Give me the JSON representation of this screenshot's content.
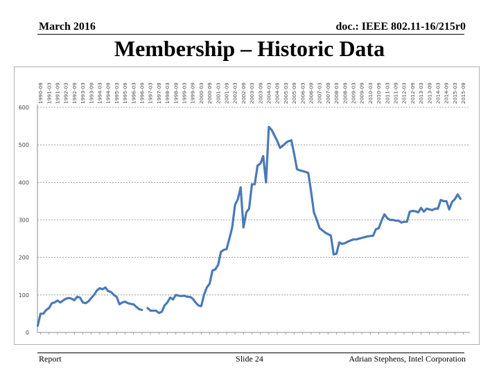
{
  "header": {
    "date": "March 2016",
    "doc_id": "doc.: IEEE 802.11-16/215r0"
  },
  "title": "Membership – Historic Data",
  "footer": {
    "left": "Report",
    "center": "Slide 24",
    "right": "Adrian Stephens, Intel Corporation"
  },
  "colors": {
    "series": "#4a7ab5",
    "grid": "#8c8c8c",
    "axis": "#8c8c8c",
    "tick_text": "#444444",
    "background": "#ffffff"
  },
  "chart_data": {
    "type": "line",
    "title": "",
    "xlabel": "",
    "ylabel": "",
    "ylim": [
      0,
      600
    ],
    "yticks": [
      0,
      100,
      200,
      300,
      400,
      500,
      600
    ],
    "grid": "horizontal-dashed",
    "legend": "none",
    "x_tick_position": "top",
    "x_tick_orientation": "vertical",
    "x_ticks": [
      "1990-09",
      "1991-03",
      "1991-09",
      "1992-03",
      "1992-09",
      "1993-03",
      "1993-09",
      "1994-03",
      "1994-09",
      "1995-03",
      "1995-09",
      "1996-03",
      "1996-09",
      "1997-03",
      "1997-09",
      "1998-03",
      "1998-09",
      "1999-03",
      "1999-09",
      "2000-03",
      "2000-09",
      "2001-03",
      "2001-09",
      "2002-03",
      "2002-09",
      "2003-03",
      "2003-09",
      "2004-03",
      "2004-09",
      "2005-03",
      "2005-09",
      "2006-03",
      "2006-09",
      "2007-03",
      "2007-09",
      "2008-03",
      "2008-09",
      "2009-03",
      "2009-09",
      "2010-03",
      "2010-09",
      "2011-03",
      "2011-09",
      "2012-03",
      "2012-09",
      "2013-03",
      "2013-09",
      "2014-03",
      "2014-09",
      "2015-03",
      "2015-09"
    ],
    "series": [
      {
        "segments": [
          [
            [
              "1990-07",
              18
            ],
            [
              "1990-09",
              50
            ],
            [
              "1990-11",
              50
            ],
            [
              "1991-01",
              60
            ],
            [
              "1991-03",
              65
            ],
            [
              "1991-05",
              78
            ],
            [
              "1991-07",
              80
            ],
            [
              "1991-09",
              85
            ],
            [
              "1991-11",
              80
            ],
            [
              "1992-01",
              85
            ],
            [
              "1992-03",
              90
            ],
            [
              "1992-05",
              92
            ],
            [
              "1992-07",
              90
            ],
            [
              "1992-09",
              86
            ],
            [
              "1992-11",
              95
            ],
            [
              "1993-01",
              93
            ],
            [
              "1993-03",
              80
            ],
            [
              "1993-05",
              78
            ],
            [
              "1993-07",
              83
            ],
            [
              "1993-09",
              92
            ],
            [
              "1993-11",
              100
            ],
            [
              "1994-01",
              112
            ],
            [
              "1994-03",
              118
            ],
            [
              "1994-05",
              115
            ],
            [
              "1994-07",
              120
            ],
            [
              "1994-09",
              110
            ],
            [
              "1994-11",
              108
            ],
            [
              "1995-01",
              100
            ],
            [
              "1995-03",
              95
            ],
            [
              "1995-05",
              75
            ],
            [
              "1995-07",
              80
            ],
            [
              "1995-09",
              82
            ],
            [
              "1995-11",
              78
            ],
            [
              "1996-01",
              76
            ],
            [
              "1996-03",
              75
            ],
            [
              "1996-05",
              68
            ],
            [
              "1996-07",
              62
            ],
            [
              "1996-09",
              60
            ]
          ],
          [
            [
              "1997-01",
              65
            ],
            [
              "1997-03",
              58
            ],
            [
              "1997-05",
              58
            ],
            [
              "1997-07",
              58
            ],
            [
              "1997-09",
              52
            ],
            [
              "1997-11",
              55
            ],
            [
              "1998-01",
              72
            ],
            [
              "1998-03",
              80
            ],
            [
              "1998-05",
              93
            ],
            [
              "1998-07",
              88
            ],
            [
              "1998-09",
              100
            ],
            [
              "1998-11",
              98
            ],
            [
              "1999-01",
              97
            ],
            [
              "1999-03",
              98
            ],
            [
              "1999-05",
              95
            ],
            [
              "1999-07",
              95
            ],
            [
              "1999-09",
              90
            ],
            [
              "1999-11",
              80
            ],
            [
              "2000-01",
              72
            ],
            [
              "2000-03",
              70
            ],
            [
              "2000-05",
              100
            ],
            [
              "2000-07",
              120
            ],
            [
              "2000-09",
              130
            ],
            [
              "2000-11",
              165
            ],
            [
              "2001-01",
              168
            ],
            [
              "2001-03",
              180
            ],
            [
              "2001-05",
              215
            ],
            [
              "2001-07",
              220
            ],
            [
              "2001-09",
              222
            ],
            [
              "2001-11",
              250
            ],
            [
              "2002-01",
              280
            ],
            [
              "2002-03",
              340
            ],
            [
              "2002-05",
              355
            ],
            [
              "2002-07",
              387
            ],
            [
              "2002-09",
              280
            ],
            [
              "2002-11",
              320
            ],
            [
              "2003-01",
              330
            ],
            [
              "2003-03",
              395
            ],
            [
              "2003-05",
              395
            ],
            [
              "2003-07",
              445
            ],
            [
              "2003-09",
              450
            ],
            [
              "2003-11",
              470
            ],
            [
              "2004-01",
              400
            ],
            [
              "2004-03",
              548
            ],
            [
              "2004-05",
              540
            ],
            [
              "2004-07",
              525
            ],
            [
              "2004-09",
              510
            ],
            [
              "2004-11",
              492
            ],
            [
              "2005-01",
              498
            ],
            [
              "2005-03",
              505
            ],
            [
              "2005-05",
              510
            ],
            [
              "2005-07",
              512
            ],
            [
              "2005-09",
              475
            ],
            [
              "2005-11",
              435
            ],
            [
              "2006-01",
              432
            ],
            [
              "2006-03",
              430
            ],
            [
              "2006-05",
              428
            ],
            [
              "2006-07",
              425
            ],
            [
              "2006-09",
              375
            ],
            [
              "2006-11",
              320
            ],
            [
              "2007-01",
              300
            ],
            [
              "2007-03",
              278
            ],
            [
              "2007-05",
              272
            ],
            [
              "2007-07",
              266
            ],
            [
              "2007-09",
              262
            ],
            [
              "2007-11",
              258
            ],
            [
              "2008-01",
              208
            ],
            [
              "2008-03",
              210
            ],
            [
              "2008-05",
              240
            ],
            [
              "2008-07",
              236
            ],
            [
              "2008-09",
              238
            ],
            [
              "2008-11",
              242
            ],
            [
              "2009-01",
              245
            ],
            [
              "2009-03",
              248
            ],
            [
              "2009-05",
              248
            ],
            [
              "2009-07",
              250
            ],
            [
              "2009-09",
              252
            ],
            [
              "2009-11",
              254
            ],
            [
              "2010-01",
              256
            ],
            [
              "2010-03",
              257
            ],
            [
              "2010-05",
              258
            ],
            [
              "2010-07",
              275
            ],
            [
              "2010-09",
              278
            ],
            [
              "2010-11",
              298
            ],
            [
              "2011-01",
              315
            ],
            [
              "2011-03",
              305
            ],
            [
              "2011-05",
              300
            ],
            [
              "2011-07",
              300
            ],
            [
              "2011-09",
              298
            ],
            [
              "2011-11",
              298
            ],
            [
              "2012-01",
              293
            ],
            [
              "2012-03",
              295
            ],
            [
              "2012-05",
              295
            ],
            [
              "2012-07",
              322
            ],
            [
              "2012-09",
              324
            ],
            [
              "2012-11",
              323
            ],
            [
              "2013-01",
              320
            ],
            [
              "2013-03",
              332
            ],
            [
              "2013-05",
              322
            ],
            [
              "2013-07",
              330
            ],
            [
              "2013-09",
              328
            ],
            [
              "2013-11",
              326
            ],
            [
              "2014-01",
              330
            ],
            [
              "2014-03",
              330
            ],
            [
              "2014-05",
              353
            ],
            [
              "2014-07",
              350
            ],
            [
              "2014-09",
              350
            ],
            [
              "2014-11",
              328
            ],
            [
              "2015-01",
              348
            ],
            [
              "2015-03",
              355
            ],
            [
              "2015-05",
              368
            ],
            [
              "2015-07",
              356
            ]
          ]
        ]
      }
    ]
  }
}
